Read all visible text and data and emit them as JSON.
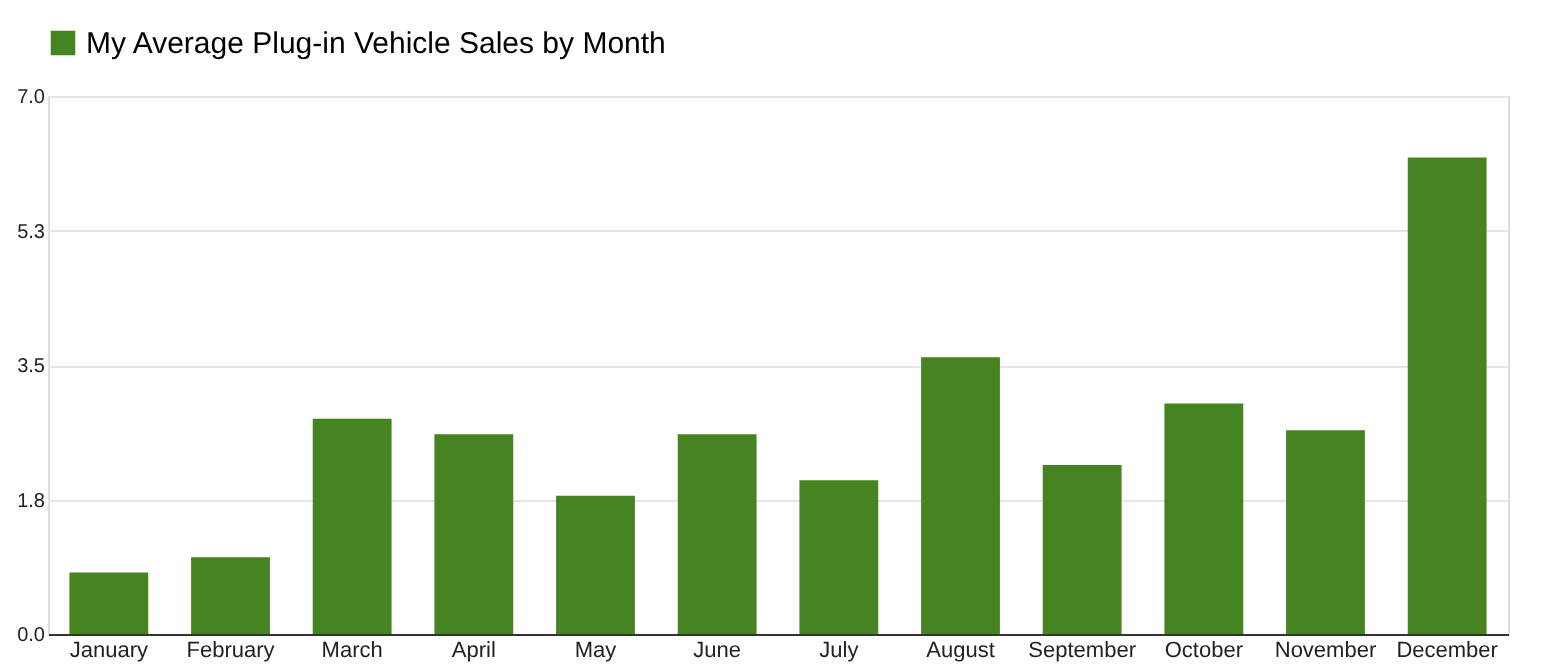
{
  "chart_data": {
    "type": "bar",
    "categories": [
      "January",
      "February",
      "March",
      "April",
      "May",
      "June",
      "July",
      "August",
      "September",
      "October",
      "November",
      "December"
    ],
    "series": [
      {
        "name": "My Average Plug-in Vehicle Sales by Month",
        "color": "#468421",
        "values": [
          0.8,
          1.0,
          2.8,
          2.6,
          1.8,
          2.6,
          2.0,
          3.6,
          2.2,
          3.0,
          2.65,
          6.2
        ]
      }
    ],
    "ylim": [
      0,
      7
    ],
    "yticks": [
      {
        "value": 0,
        "label": "0.0"
      },
      {
        "value": 1.75,
        "label": "1.8"
      },
      {
        "value": 3.5,
        "label": "3.5"
      },
      {
        "value": 5.25,
        "label": "5.3"
      },
      {
        "value": 7,
        "label": "7.0"
      }
    ],
    "grid": "y",
    "legend": "top"
  }
}
